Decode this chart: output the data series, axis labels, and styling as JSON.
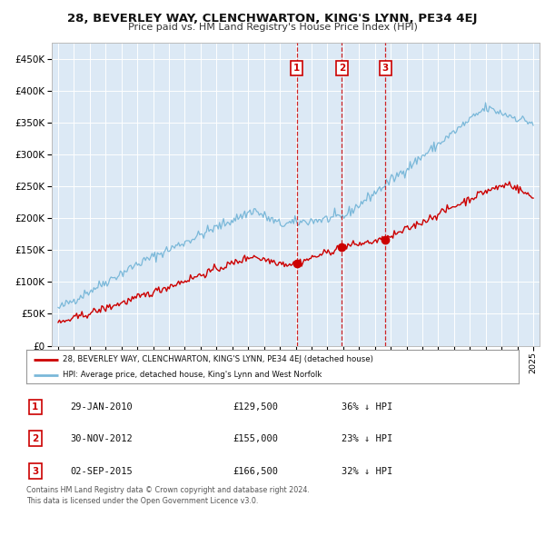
{
  "title": "28, BEVERLEY WAY, CLENCHWARTON, KING'S LYNN, PE34 4EJ",
  "subtitle": "Price paid vs. HM Land Registry's House Price Index (HPI)",
  "background_color": "#ffffff",
  "plot_bg_color": "#dce9f5",
  "hpi_color": "#7ab8d9",
  "price_color": "#cc0000",
  "vline_color": "#cc0000",
  "ylim": [
    0,
    475000
  ],
  "yticks": [
    0,
    50000,
    100000,
    150000,
    200000,
    250000,
    300000,
    350000,
    400000,
    450000
  ],
  "sale_dates": [
    2010.08,
    2012.92,
    2015.67
  ],
  "sale_prices": [
    129500,
    155000,
    166500
  ],
  "sale_labels": [
    "1",
    "2",
    "3"
  ],
  "legend_red": "28, BEVERLEY WAY, CLENCHWARTON, KING'S LYNN, PE34 4EJ (detached house)",
  "legend_blue": "HPI: Average price, detached house, King's Lynn and West Norfolk",
  "table_rows": [
    {
      "num": "1",
      "date": "29-JAN-2010",
      "price": "£129,500",
      "pct": "36% ↓ HPI"
    },
    {
      "num": "2",
      "date": "30-NOV-2012",
      "price": "£155,000",
      "pct": "23% ↓ HPI"
    },
    {
      "num": "3",
      "date": "02-SEP-2015",
      "price": "£166,500",
      "pct": "32% ↓ HPI"
    }
  ],
  "footnote": "Contains HM Land Registry data © Crown copyright and database right 2024.\nThis data is licensed under the Open Government Licence v3.0."
}
